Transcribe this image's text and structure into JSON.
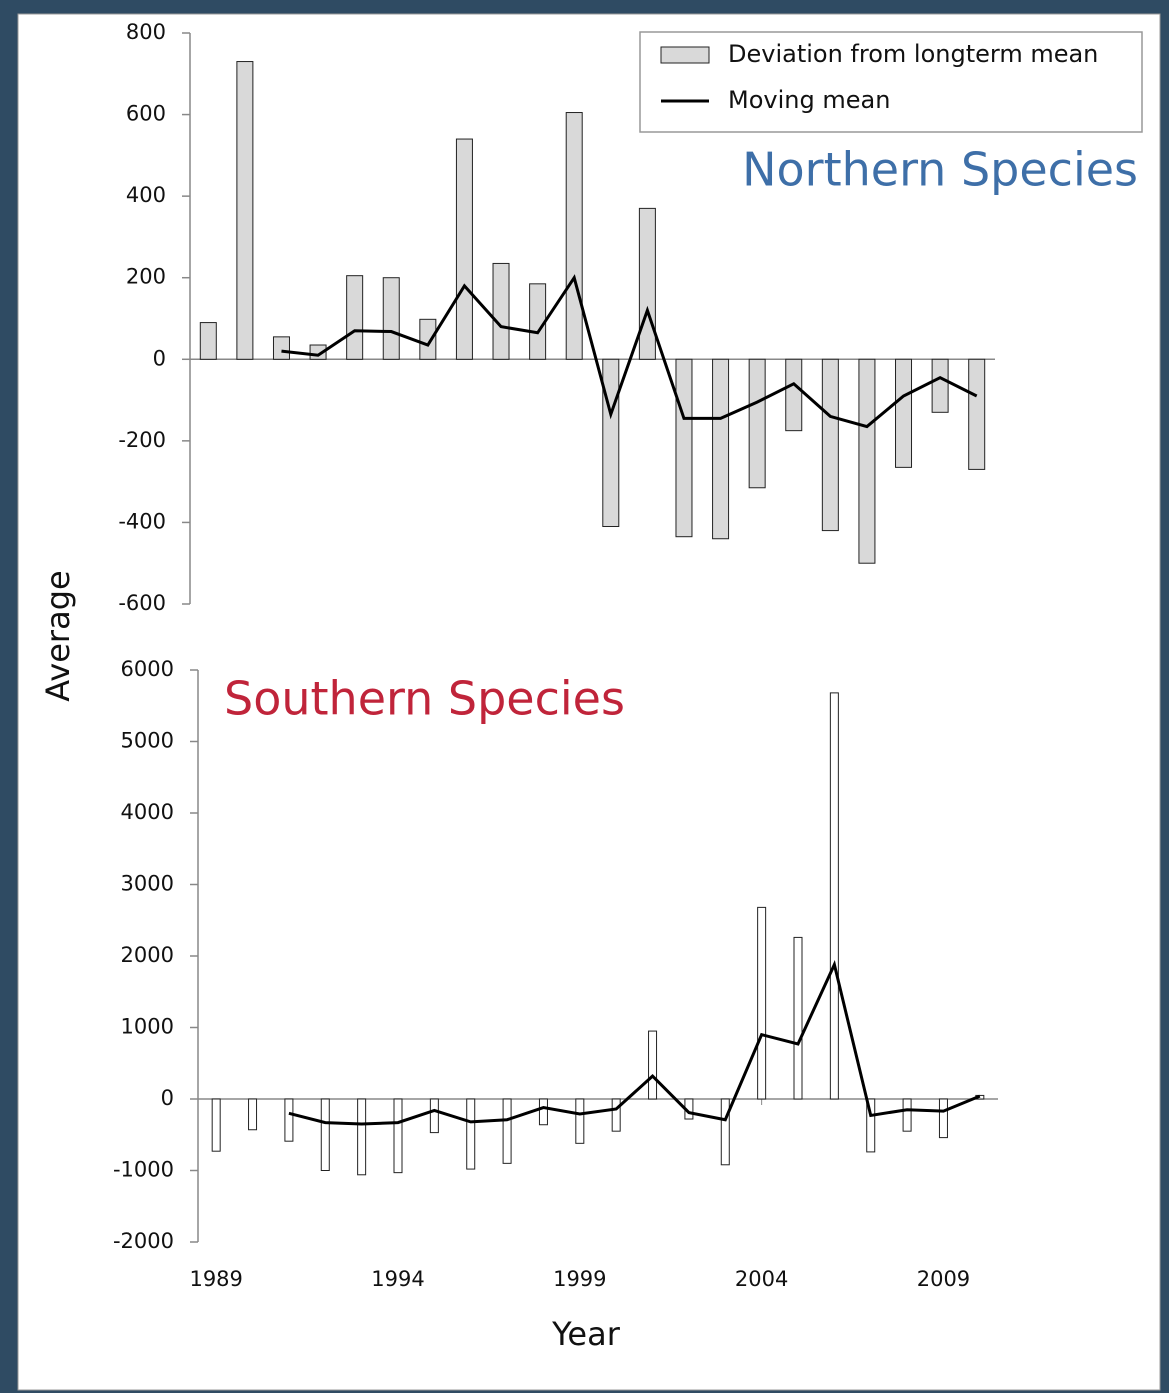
{
  "chart_data": [
    {
      "type": "bar",
      "title": "Northern Species",
      "ylabel": "Average",
      "x": [
        1989,
        1990,
        1991,
        1992,
        1993,
        1994,
        1995,
        1996,
        1997,
        1998,
        1999,
        2000,
        2001,
        2002,
        2003,
        2004,
        2005,
        2006,
        2007,
        2008,
        2009,
        2010
      ],
      "xlim": [
        1988.5,
        2010.5
      ],
      "ylim": [
        -600,
        800
      ],
      "yticks": [
        -600,
        -400,
        -200,
        0,
        200,
        400,
        600,
        800
      ],
      "legend": "top-right",
      "series": [
        {
          "name": "Deviation from longterm mean",
          "type": "bar",
          "color": "#d9d9d9",
          "values": [
            90,
            730,
            55,
            35,
            205,
            200,
            98,
            540,
            235,
            185,
            605,
            -410,
            370,
            -435,
            -440,
            -315,
            -175,
            -420,
            -500,
            -265,
            -130,
            -270
          ]
        },
        {
          "name": "Moving mean",
          "type": "line",
          "color": "#000000",
          "values": [
            null,
            null,
            20,
            10,
            70,
            68,
            35,
            180,
            80,
            65,
            200,
            -135,
            120,
            -145,
            -145,
            -105,
            -60,
            -140,
            -165,
            -90,
            -45,
            -90
          ]
        }
      ]
    },
    {
      "type": "bar",
      "title": "Southern Species",
      "xlabel": "Year",
      "x": [
        1989,
        1990,
        1991,
        1992,
        1993,
        1994,
        1995,
        1996,
        1997,
        1998,
        1999,
        2000,
        2001,
        2002,
        2003,
        2004,
        2005,
        2006,
        2007,
        2008,
        2009,
        2010
      ],
      "xlim": [
        1988.5,
        2010.5
      ],
      "xticks": [
        1989,
        1994,
        1999,
        2004,
        2009
      ],
      "ylim": [
        -2000,
        6000
      ],
      "yticks": [
        -2000,
        -1000,
        0,
        1000,
        2000,
        3000,
        4000,
        5000,
        6000
      ],
      "series": [
        {
          "type": "bar",
          "color": "#ffffff",
          "values": [
            -730,
            -430,
            -590,
            -1000,
            -1060,
            -1030,
            -470,
            -980,
            -900,
            -360,
            -620,
            -450,
            950,
            -280,
            -920,
            2680,
            2260,
            5680,
            -740,
            -450,
            -540,
            50
          ]
        },
        {
          "type": "line",
          "color": "#000000",
          "values": [
            null,
            null,
            -200,
            -330,
            -350,
            -330,
            -160,
            -320,
            -290,
            -120,
            -210,
            -140,
            320,
            -190,
            -290,
            900,
            770,
            1880,
            -230,
            -150,
            -170,
            40
          ]
        }
      ]
    }
  ]
}
